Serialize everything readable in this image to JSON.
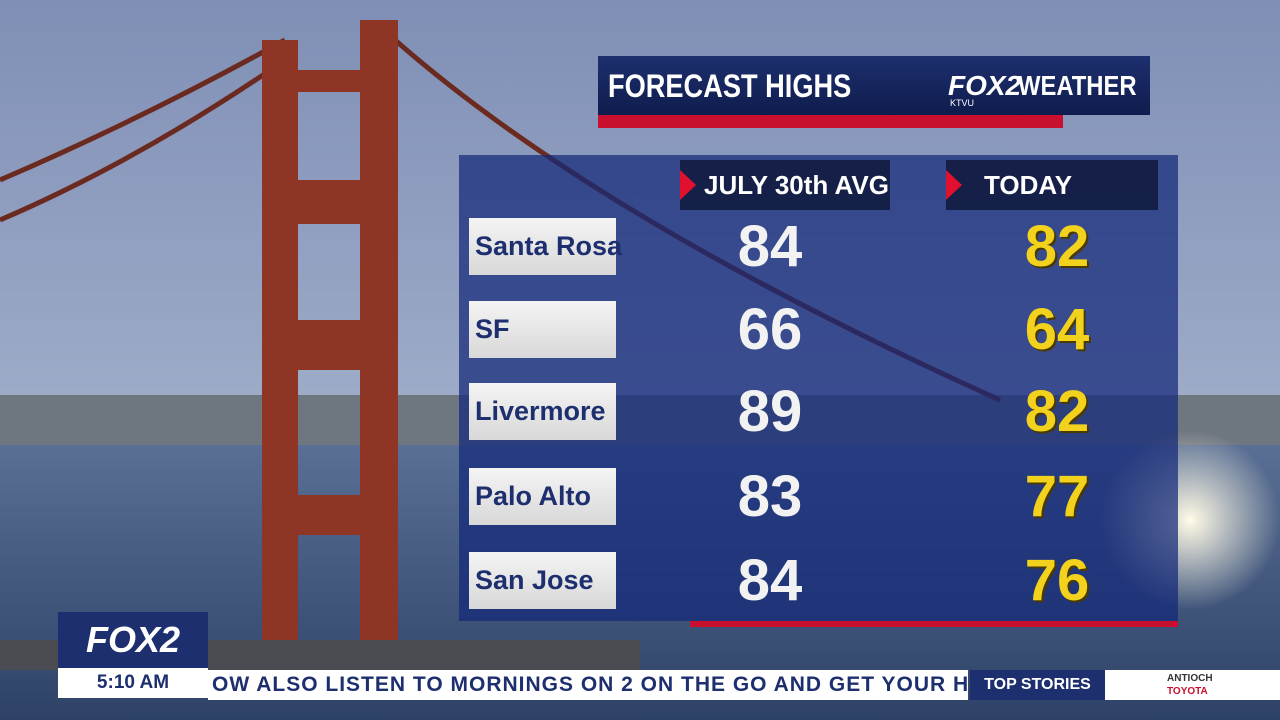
{
  "header": {
    "title": "FORECAST HIGHS",
    "logo": "FOX2",
    "logo_sub": "KTVU",
    "brand": "WEATHER"
  },
  "table": {
    "columns": [
      "JULY 30th AVG",
      "TODAY"
    ],
    "rows": [
      [
        "Santa Rosa",
        84,
        82
      ],
      [
        "SF",
        66,
        64
      ],
      [
        "Livermore",
        89,
        82
      ],
      [
        "Palo Alto",
        83,
        77
      ],
      [
        "San Jose",
        84,
        76
      ]
    ]
  },
  "footer": {
    "bug": "FOX2",
    "time": "5:10 AM",
    "ticker": "OW ALSO LISTEN TO MORNINGS ON 2 ON THE GO AND GET YOUR H",
    "section": "TOP STORIES",
    "sponsor_city": "ANTIOCH",
    "sponsor": "TOYOTA"
  }
}
